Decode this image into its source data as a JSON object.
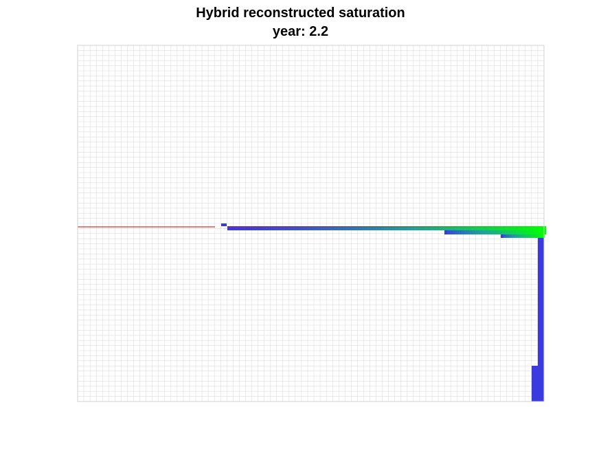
{
  "figure": {
    "title": "Hybrid reconstructed saturation",
    "subtitle": "year: 2.2"
  },
  "colors": {
    "background": "#ffffff",
    "grid_line": "#dcdcdc",
    "axes_border": "#d0d0d0",
    "well_line": "#c00000",
    "low_saturation": "#3a3adf",
    "mid_saturation": "#1fa0a0",
    "high_saturation": "#00ff00"
  }
}
